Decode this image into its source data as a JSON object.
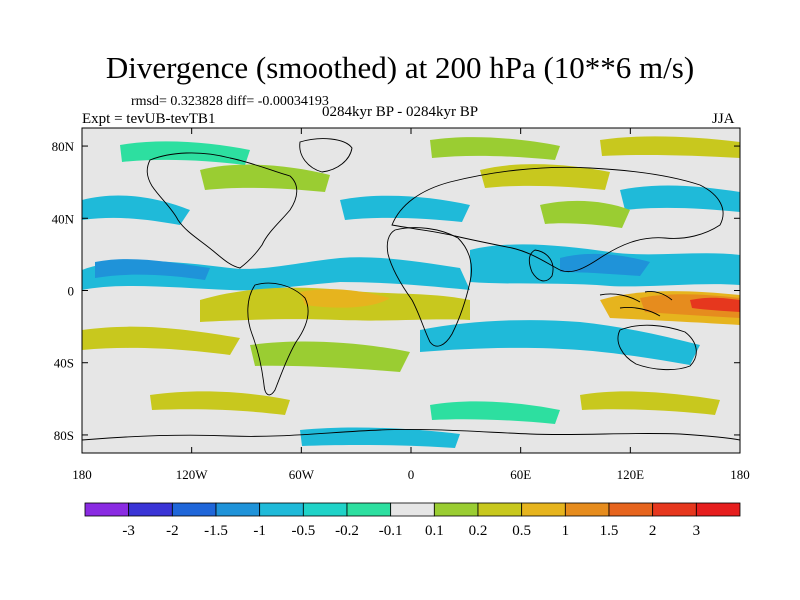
{
  "title": "Divergence (smoothed) at 200 hPa (10**6 m/s)",
  "stats": "rmsd= 0.323828 diff= -0.00034193",
  "experiment": "Expt = tevUB-tevTB1",
  "period": "0284kyr BP - 0284kyr BP",
  "season": "JJA",
  "map": {
    "projection": "cylindrical-equidistant",
    "lon_range": [
      -180,
      180
    ],
    "lat_range": [
      -90,
      90
    ],
    "x_ticks": [
      {
        "value": -180,
        "label": "180"
      },
      {
        "value": -120,
        "label": "120W"
      },
      {
        "value": -60,
        "label": "60W"
      },
      {
        "value": 0,
        "label": "0"
      },
      {
        "value": 60,
        "label": "60E"
      },
      {
        "value": 120,
        "label": "120E"
      },
      {
        "value": 180,
        "label": "180"
      }
    ],
    "y_ticks": [
      {
        "value": 80,
        "label": "80N"
      },
      {
        "value": 40,
        "label": "40N"
      },
      {
        "value": 0,
        "label": "0"
      },
      {
        "value": -40,
        "label": "40S"
      },
      {
        "value": -80,
        "label": "80S"
      }
    ],
    "background_color": "#e6e6e6",
    "coastline_color": "#000000"
  },
  "colorbar": {
    "labels": [
      "-3",
      "-2",
      "-1.5",
      "-1",
      "-0.5",
      "-0.2",
      "-0.1",
      "0.1",
      "0.2",
      "0.5",
      "1",
      "1.5",
      "2",
      "3"
    ],
    "colors": [
      "#8a2be2",
      "#3a34d6",
      "#1f66d9",
      "#1f93d9",
      "#1fbad9",
      "#20d3c8",
      "#2ddfa0",
      "#e6e6e6",
      "#9acd32",
      "#c8c81e",
      "#e6b41e",
      "#e68c1e",
      "#e6641e",
      "#e6371e",
      "#e61e1e"
    ]
  }
}
